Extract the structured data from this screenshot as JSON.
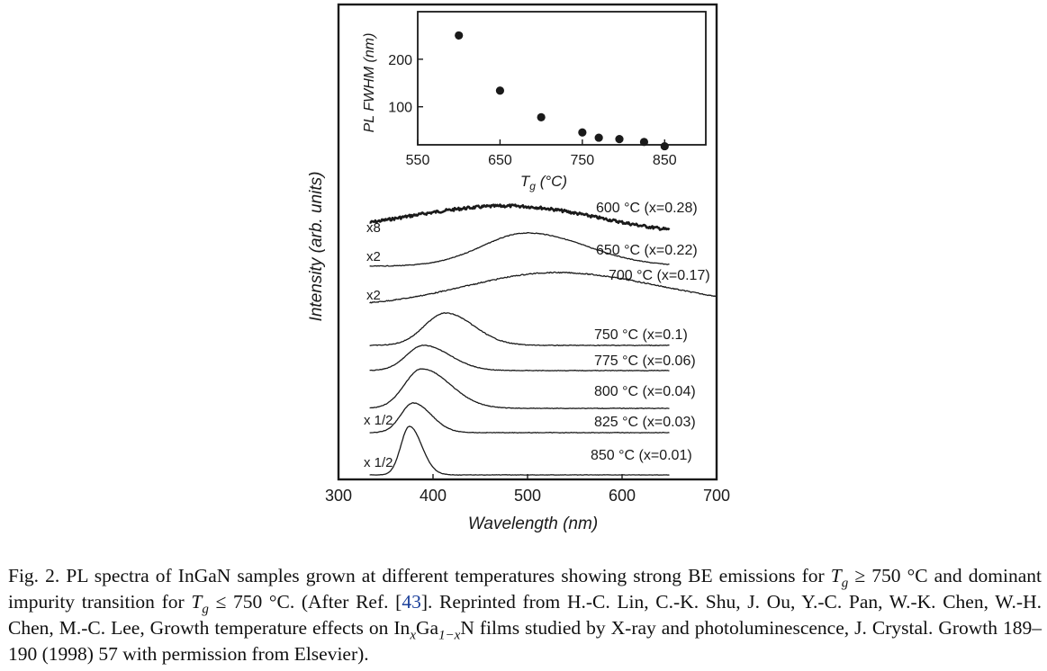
{
  "colors": {
    "ink": "#1a1a1a",
    "ref_link": "#1b3f9a"
  },
  "chart_data": [
    {
      "type": "scatter",
      "xlabel": "T_g (°C)",
      "ylabel": "PL FWHM (nm)",
      "xlim": [
        550,
        900
      ],
      "ylim": [
        20,
        300
      ],
      "x_ticks": [
        "550",
        "650",
        "750",
        "850"
      ],
      "y_ticks": [
        "100",
        "200"
      ],
      "x": [
        600,
        650,
        700,
        750,
        770,
        795,
        825,
        850
      ],
      "y": [
        250,
        134,
        78,
        46,
        35,
        32,
        26,
        17
      ]
    },
    {
      "type": "line",
      "xlabel": "Wavelength (nm)",
      "ylabel": "Intensity (arb. units)",
      "xlim": [
        300,
        700
      ],
      "x_ticks": [
        "300",
        "400",
        "500",
        "600",
        "700"
      ],
      "grid": false,
      "series": [
        {
          "name": "600 °C (x=0.28)",
          "scale": "x8",
          "peak_nm": 480,
          "x_start": 333,
          "x_end": 650
        },
        {
          "name": "650 °C (x=0.22)",
          "scale": "x2",
          "peak_nm": 500,
          "x_start": 333,
          "x_end": 650
        },
        {
          "name": "700 °C (x=0.17)",
          "scale": "x2",
          "peak_nm": 530,
          "x_start": 333,
          "x_end": 700
        },
        {
          "name": "750 °C (x=0.1)",
          "scale": "",
          "peak_nm": 413,
          "x_start": 333,
          "x_end": 650
        },
        {
          "name": "775 °C (x=0.06)",
          "scale": "",
          "peak_nm": 390,
          "x_start": 333,
          "x_end": 650
        },
        {
          "name": "800 °C (x=0.04)",
          "scale": "",
          "peak_nm": 388,
          "x_start": 333,
          "x_end": 650
        },
        {
          "name": "825 °C (x=0.03)",
          "scale": "x 1/2",
          "peak_nm": 379,
          "x_start": 333,
          "x_end": 650
        },
        {
          "name": "850 °C (x=0.01)",
          "scale": "x 1/2",
          "peak_nm": 375,
          "x_start": 333,
          "x_end": 650
        }
      ]
    }
  ],
  "caption": {
    "fig_label": "Fig. 2.",
    "t1": " PL spectra of InGaN samples grown at different temperatures showing strong BE emissions for ",
    "tg": "T",
    "tg_sub": "g",
    "t2": " ≥ 750 °C and dominant impurity transition for ",
    "t3": " ≤ 750 °C. (After Ref. [",
    "ref": "43",
    "t4": "]. Reprinted from H.-C. Lin, C.-K. Shu, J. Ou, Y.-C. Pan, W.-K. Chen, W.-H. Chen, M.-C. Lee, Growth temperature effects on In",
    "sub_x": "x",
    "ga": "Ga",
    "sub_1mx": "1−x",
    "t5": "N films studied by X-ray and photoluminescence, J. Crystal. Growth 189–190 (1998) 57 with permission from Elsevier)."
  }
}
